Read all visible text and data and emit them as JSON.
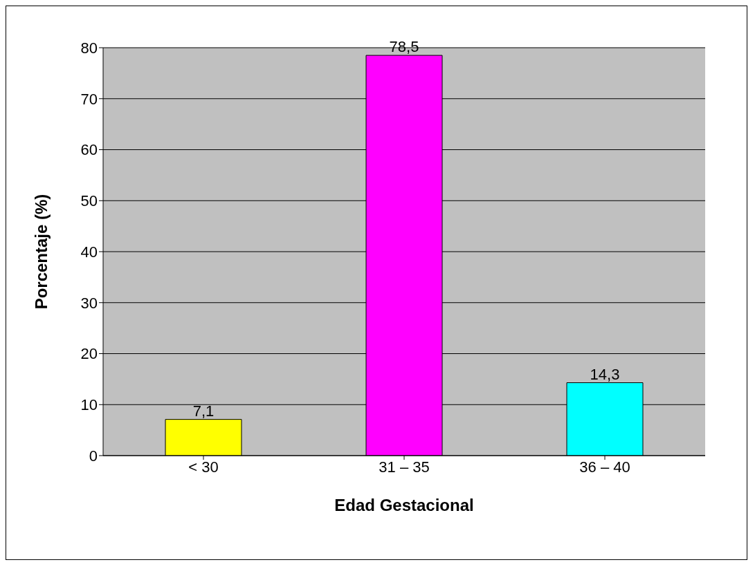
{
  "chart_data": {
    "type": "bar",
    "xlabel": "Edad Gestacional",
    "ylabel": "Porcentaje (%)",
    "categories": [
      "< 30",
      "31 – 35",
      "36 – 40"
    ],
    "values": [
      7.1,
      78.5,
      14.3
    ],
    "colors": [
      "#ffff00",
      "#ff00ff",
      "#00ffff"
    ],
    "value_labels": [
      "7,1",
      "78,5",
      "14,3"
    ],
    "ylim": [
      0,
      80
    ],
    "yticks": [
      0,
      10,
      20,
      30,
      40,
      50,
      60,
      70,
      80
    ],
    "grid": "y"
  }
}
